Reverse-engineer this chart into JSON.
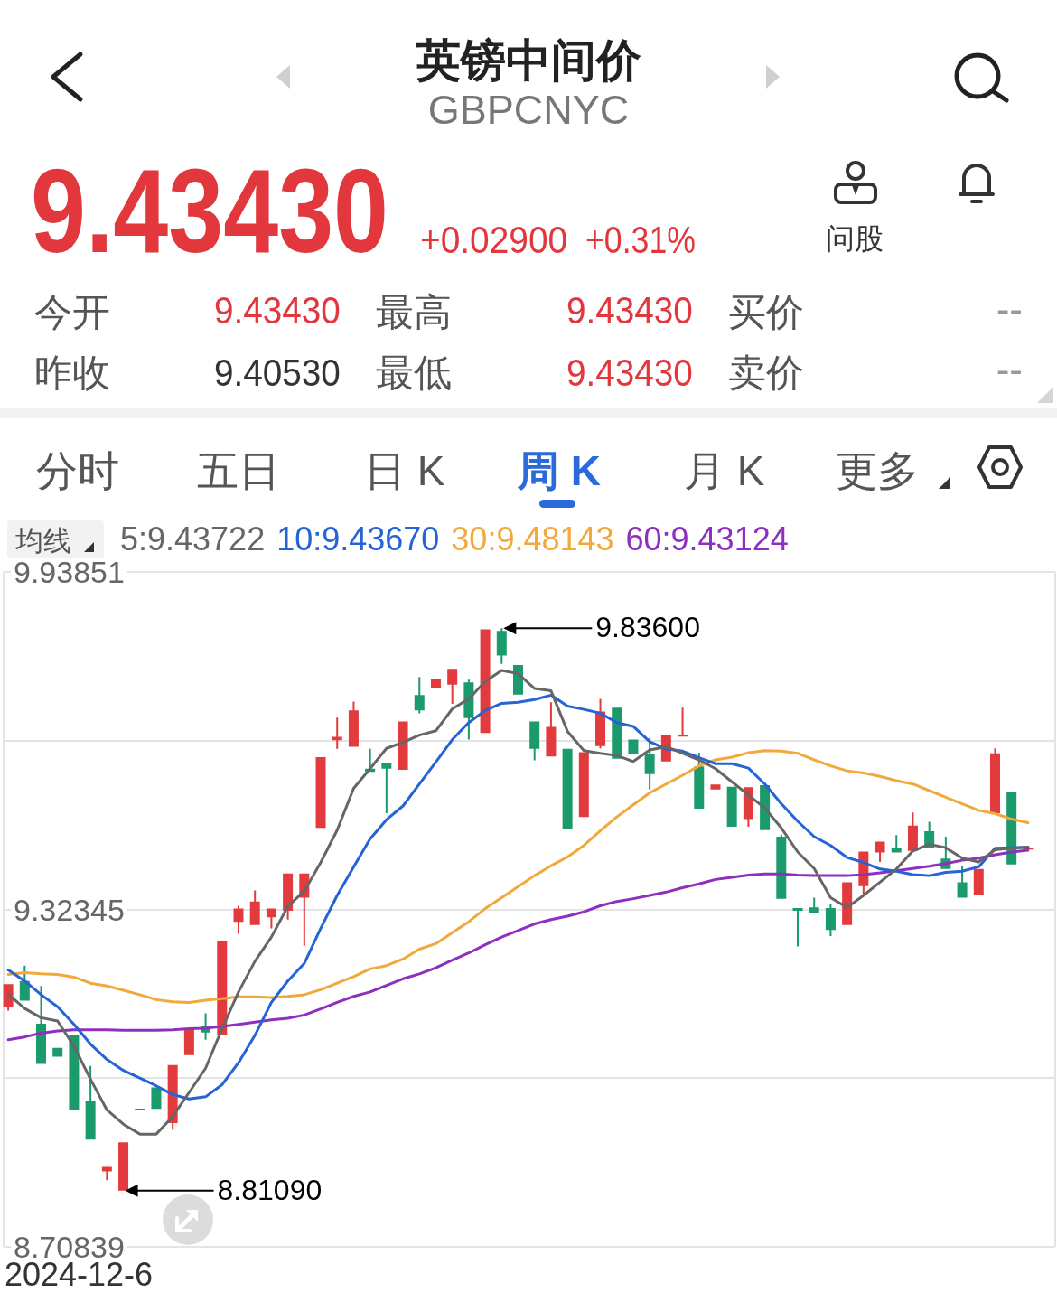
{
  "chart_data": {
    "type": "candlestick",
    "title": "英镑中间价",
    "subtitle": "GBPCNYC",
    "categories": [
      null,
      null,
      null,
      null,
      null,
      null,
      null,
      null,
      null,
      null,
      null,
      null,
      null,
      null,
      null,
      null,
      null,
      null,
      null,
      null,
      null,
      null,
      null,
      null,
      null,
      null,
      null,
      null,
      null,
      null,
      null,
      null,
      null,
      null,
      null,
      null,
      null,
      null,
      null,
      null,
      null,
      null,
      null,
      null,
      null,
      null,
      null,
      null,
      null,
      null,
      null,
      null,
      null,
      null,
      null,
      null,
      null,
      null,
      null,
      null,
      null,
      null,
      null
    ],
    "ohlc": [
      [
        9.146,
        9.187,
        9.139,
        9.187
      ],
      [
        9.193,
        9.221,
        9.157,
        9.157
      ],
      [
        9.115,
        9.184,
        9.042,
        9.042
      ],
      [
        9.071,
        9.071,
        9.055,
        9.055
      ],
      [
        9.095,
        9.095,
        8.957,
        8.957
      ],
      [
        8.975,
        9.038,
        8.904,
        8.904
      ],
      [
        8.846,
        8.854,
        8.83,
        8.854
      ],
      [
        8.811,
        8.899,
        8.8109,
        8.899
      ],
      [
        8.958,
        8.959,
        8.958,
        8.959
      ],
      [
        8.999,
        8.999,
        8.96,
        8.96
      ],
      [
        8.934,
        9.04,
        8.922,
        9.04
      ],
      [
        9.058,
        9.106,
        9.058,
        9.106
      ],
      [
        9.111,
        9.134,
        9.086,
        9.099
      ],
      [
        9.095,
        9.265,
        9.095,
        9.265
      ],
      [
        9.301,
        9.33,
        9.279,
        9.325
      ],
      [
        9.295,
        9.358,
        9.295,
        9.338
      ],
      [
        9.309,
        9.325,
        9.289,
        9.325
      ],
      [
        9.321,
        9.389,
        9.305,
        9.389
      ],
      [
        9.345,
        9.389,
        9.257,
        9.389
      ],
      [
        9.472,
        9.601,
        9.472,
        9.601
      ],
      [
        9.632,
        9.673,
        9.616,
        9.638
      ],
      [
        9.62,
        9.702,
        9.62,
        9.686
      ],
      [
        9.58,
        9.616,
        9.574,
        9.574
      ],
      [
        9.591,
        9.591,
        9.499,
        9.58
      ],
      [
        9.578,
        9.666,
        9.578,
        9.666
      ],
      [
        9.714,
        9.747,
        9.681,
        9.686
      ],
      [
        9.727,
        9.743,
        9.727,
        9.743
      ],
      [
        9.733,
        9.762,
        9.698,
        9.762
      ],
      [
        9.737,
        9.742,
        9.633,
        9.672
      ],
      [
        9.645,
        9.834,
        9.645,
        9.834
      ],
      [
        9.831,
        9.836,
        9.771,
        9.786
      ],
      [
        9.769,
        9.769,
        9.715,
        9.715
      ],
      [
        9.666,
        9.666,
        9.595,
        9.616
      ],
      [
        9.602,
        9.701,
        9.602,
        9.656
      ],
      [
        9.616,
        9.616,
        9.471,
        9.471
      ],
      [
        9.492,
        9.61,
        9.492,
        9.61
      ],
      [
        9.621,
        9.707,
        9.617,
        9.684
      ],
      [
        9.691,
        9.691,
        9.598,
        9.598
      ],
      [
        9.633,
        9.633,
        9.606,
        9.606
      ],
      [
        9.606,
        9.636,
        9.542,
        9.57
      ],
      [
        9.593,
        9.641,
        9.593,
        9.641
      ],
      [
        9.639,
        9.691,
        9.639,
        9.641
      ],
      [
        9.584,
        9.609,
        9.507,
        9.507
      ],
      [
        9.542,
        9.551,
        9.542,
        9.551
      ],
      [
        9.547,
        9.547,
        9.474,
        9.474
      ],
      [
        9.488,
        9.546,
        9.474,
        9.546
      ],
      [
        9.55,
        9.55,
        9.468,
        9.468
      ],
      [
        9.456,
        9.46,
        9.343,
        9.343
      ],
      [
        9.326,
        9.326,
        9.256,
        9.321
      ],
      [
        9.327,
        9.345,
        9.317,
        9.317
      ],
      [
        9.326,
        9.333,
        9.275,
        9.286
      ],
      [
        9.295,
        9.373,
        9.295,
        9.373
      ],
      [
        9.366,
        9.429,
        9.349,
        9.429
      ],
      [
        9.427,
        9.447,
        9.41,
        9.447
      ],
      [
        9.435,
        9.459,
        9.427,
        9.427
      ],
      [
        9.43,
        9.5,
        9.43,
        9.476
      ],
      [
        9.466,
        9.483,
        9.436,
        9.436
      ],
      [
        9.416,
        9.456,
        9.397,
        9.397
      ],
      [
        9.373,
        9.402,
        9.345,
        9.345
      ],
      [
        9.349,
        9.397,
        9.349,
        9.397
      ],
      [
        9.499,
        9.617,
        9.499,
        9.608
      ],
      [
        9.538,
        9.538,
        9.4053,
        9.4053
      ],
      [
        9.4343,
        9.4343,
        9.4343,
        9.4343
      ]
    ],
    "colors": [
      "#e33a3d",
      "#1b9a6c",
      "#1b9a6c",
      "#1b9a6c",
      "#1b9a6c",
      "#1b9a6c",
      "#e33a3d",
      "#e33a3d",
      "#e33a3d",
      "#1b9a6c",
      "#e33a3d",
      "#e33a3d",
      "#1b9a6c",
      "#e33a3d",
      "#e33a3d",
      "#e33a3d",
      "#e33a3d",
      "#e33a3d",
      "#e33a3d",
      "#e33a3d",
      "#e33a3d",
      "#e33a3d",
      "#1b9a6c",
      "#1b9a6c",
      "#e33a3d",
      "#1b9a6c",
      "#e33a3d",
      "#e33a3d",
      "#1b9a6c",
      "#e33a3d",
      "#1b9a6c",
      "#1b9a6c",
      "#1b9a6c",
      "#e33a3d",
      "#1b9a6c",
      "#e33a3d",
      "#e33a3d",
      "#1b9a6c",
      "#1b9a6c",
      "#1b9a6c",
      "#e33a3d",
      "#e33a3d",
      "#1b9a6c",
      "#e33a3d",
      "#1b9a6c",
      "#e33a3d",
      "#1b9a6c",
      "#1b9a6c",
      "#1b9a6c",
      "#1b9a6c",
      "#1b9a6c",
      "#e33a3d",
      "#e33a3d",
      "#e33a3d",
      "#1b9a6c",
      "#e33a3d",
      "#1b9a6c",
      "#1b9a6c",
      "#1b9a6c",
      "#e33a3d",
      "#e33a3d",
      "#1b9a6c",
      "#e33a3d"
    ],
    "series": [
      {
        "name": "5:9.43722",
        "type": "line",
        "color": "#666666",
        "values": [
          9.169,
          9.143,
          9.126,
          9.12,
          9.074,
          9.014,
          8.958,
          8.932,
          8.914,
          8.914,
          8.946,
          8.99,
          9.034,
          9.106,
          9.173,
          9.229,
          9.273,
          9.329,
          9.357,
          9.409,
          9.468,
          9.544,
          9.58,
          9.617,
          9.628,
          9.641,
          9.649,
          9.689,
          9.707,
          9.739,
          9.759,
          9.753,
          9.726,
          9.722,
          9.648,
          9.613,
          9.608,
          9.604,
          9.593,
          9.614,
          9.62,
          9.608,
          9.596,
          9.58,
          9.556,
          9.532,
          9.508,
          9.472,
          9.428,
          9.398,
          9.345,
          9.327,
          9.349,
          9.373,
          9.397,
          9.43,
          9.442,
          9.436,
          9.417,
          9.41,
          9.432,
          9.435,
          9.43722
        ]
      },
      {
        "name": "10:9.43670",
        "type": "line",
        "color": "#2563d6",
        "values": [
          9.213,
          9.193,
          9.168,
          9.146,
          9.114,
          9.078,
          9.05,
          9.03,
          9.016,
          9.002,
          8.986,
          8.978,
          8.982,
          9.004,
          9.044,
          9.094,
          9.154,
          9.193,
          9.225,
          9.289,
          9.349,
          9.401,
          9.452,
          9.487,
          9.512,
          9.552,
          9.592,
          9.633,
          9.664,
          9.686,
          9.699,
          9.701,
          9.706,
          9.714,
          9.694,
          9.688,
          9.681,
          9.664,
          9.657,
          9.629,
          9.616,
          9.612,
          9.6,
          9.589,
          9.589,
          9.581,
          9.552,
          9.516,
          9.484,
          9.456,
          9.44,
          9.418,
          9.409,
          9.397,
          9.393,
          9.387,
          9.385,
          9.391,
          9.393,
          9.401,
          9.435,
          9.436,
          9.4367
        ]
      },
      {
        "name": "30:9.48143",
        "type": "line",
        "color": "#f0a93a",
        "values": [
          9.205,
          9.208,
          9.206,
          9.205,
          9.2,
          9.189,
          9.184,
          9.176,
          9.168,
          9.159,
          9.155,
          9.154,
          9.158,
          9.161,
          9.164,
          9.164,
          9.163,
          9.165,
          9.168,
          9.177,
          9.189,
          9.201,
          9.215,
          9.221,
          9.233,
          9.251,
          9.261,
          9.281,
          9.301,
          9.325,
          9.345,
          9.365,
          9.385,
          9.403,
          9.419,
          9.44,
          9.467,
          9.492,
          9.514,
          9.536,
          9.552,
          9.568,
          9.585,
          9.596,
          9.601,
          9.609,
          9.613,
          9.612,
          9.608,
          9.596,
          9.585,
          9.576,
          9.572,
          9.566,
          9.558,
          9.552,
          9.54,
          9.528,
          9.516,
          9.504,
          9.498,
          9.488,
          9.48143
        ]
      },
      {
        "name": "60:9.43124",
        "type": "line",
        "color": "#8e2fc0",
        "values": [
          9.086,
          9.091,
          9.098,
          9.102,
          9.104,
          9.104,
          9.104,
          9.103,
          9.103,
          9.103,
          9.104,
          9.106,
          9.107,
          9.11,
          9.114,
          9.118,
          9.122,
          9.125,
          9.131,
          9.142,
          9.154,
          9.165,
          9.173,
          9.185,
          9.197,
          9.206,
          9.217,
          9.231,
          9.244,
          9.259,
          9.273,
          9.285,
          9.297,
          9.305,
          9.311,
          9.319,
          9.33,
          9.338,
          9.343,
          9.349,
          9.355,
          9.363,
          9.37,
          9.378,
          9.382,
          9.386,
          9.388,
          9.388,
          9.386,
          9.385,
          9.385,
          9.385,
          9.387,
          9.39,
          9.394,
          9.398,
          9.402,
          9.407,
          9.413,
          9.417,
          9.423,
          9.428,
          9.43124
        ]
      }
    ],
    "ylim": [
      8.70839,
      9.93851
    ],
    "yticks": [
      9.93851,
      {
        "value": 9.63098,
        "label": null
      },
      9.32345,
      {
        "value": 9.01592,
        "label": null
      },
      8.70839
    ],
    "grid": "y",
    "legend": "top left",
    "legend_title": "均线",
    "tick_labels": "y",
    "annotations": [
      "9.43430",
      "+0.02900",
      "+0.31%",
      "问股",
      "今开",
      "9.43430",
      "最高",
      "9.43430",
      "买价",
      "--",
      "昨收",
      "9.40530",
      "最低",
      "9.43430",
      "卖价",
      "--",
      "分时",
      "五日",
      "日 K",
      "周 K",
      "月 K",
      "更多",
      "9.83600",
      "8.81090",
      "2024-12-6"
    ]
  }
}
